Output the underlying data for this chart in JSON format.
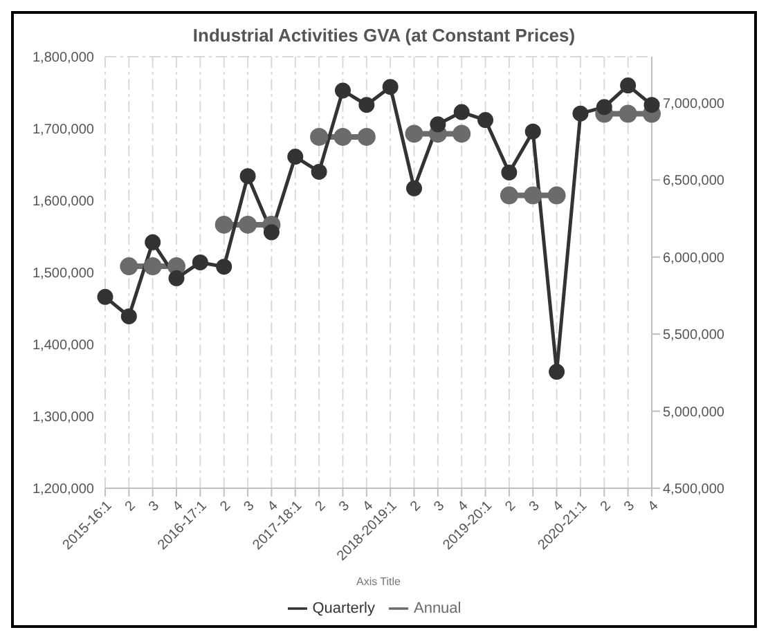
{
  "chart_data": {
    "type": "line",
    "title": "Industrial Activities GVA (at Constant Prices)",
    "xlabel": "Axis Title",
    "categories": [
      "2015-16:1",
      "2",
      "3",
      "4",
      "2016-17:1",
      "2",
      "3",
      "4",
      "2017-18:1",
      "2",
      "3",
      "4",
      "2018-2019:1",
      "2",
      "3",
      "4",
      "2019-20:1",
      "2",
      "3",
      "4",
      "2020-21:1",
      "2",
      "3",
      "4"
    ],
    "series": [
      {
        "name": "Quarterly",
        "color": "#333333",
        "values": [
          1466000,
          1439000,
          1542000,
          1492000,
          1514000,
          1508000,
          1634000,
          1556000,
          1661000,
          1640000,
          1753000,
          1733000,
          1758000,
          1617000,
          1706000,
          1723000,
          1712000,
          1639000,
          1696000,
          1362000,
          1721000,
          1730000,
          1760000,
          1733000
        ]
      },
      {
        "name": "Annual",
        "color": "#6b6b6b",
        "axis": "y2",
        "values": [
          null,
          5940000,
          5940000,
          5940000,
          null,
          6210000,
          6210000,
          6210000,
          null,
          6780000,
          6780000,
          6780000,
          null,
          6800000,
          6800000,
          6800000,
          null,
          6400000,
          6400000,
          6400000,
          null,
          6930000,
          6930000,
          6930000
        ]
      }
    ],
    "ylim": [
      1200000,
      1800000
    ],
    "yticks": [
      {
        "value": 1200000,
        "label": "1,200,000"
      },
      {
        "value": 1300000,
        "label": "1,300,000"
      },
      {
        "value": 1400000,
        "label": "1,400,000"
      },
      {
        "value": 1500000,
        "label": "1,500,000"
      },
      {
        "value": 1600000,
        "label": "1,600,000"
      },
      {
        "value": 1700000,
        "label": "1,700,000"
      },
      {
        "value": 1800000,
        "label": "1,800,000"
      }
    ],
    "y2lim": [
      4500000,
      7300000
    ],
    "y2ticks": [
      {
        "value": 4500000,
        "label": "4,500,000"
      },
      {
        "value": 5000000,
        "label": "5,000,000"
      },
      {
        "value": 5500000,
        "label": "5,500,000"
      },
      {
        "value": 6000000,
        "label": "6,000,000"
      },
      {
        "value": 6500000,
        "label": "6,500,000"
      },
      {
        "value": 7000000,
        "label": "7,000,000"
      }
    ],
    "grid": true,
    "legend": "bottom",
    "marker": "circle",
    "line_style": "solid"
  }
}
